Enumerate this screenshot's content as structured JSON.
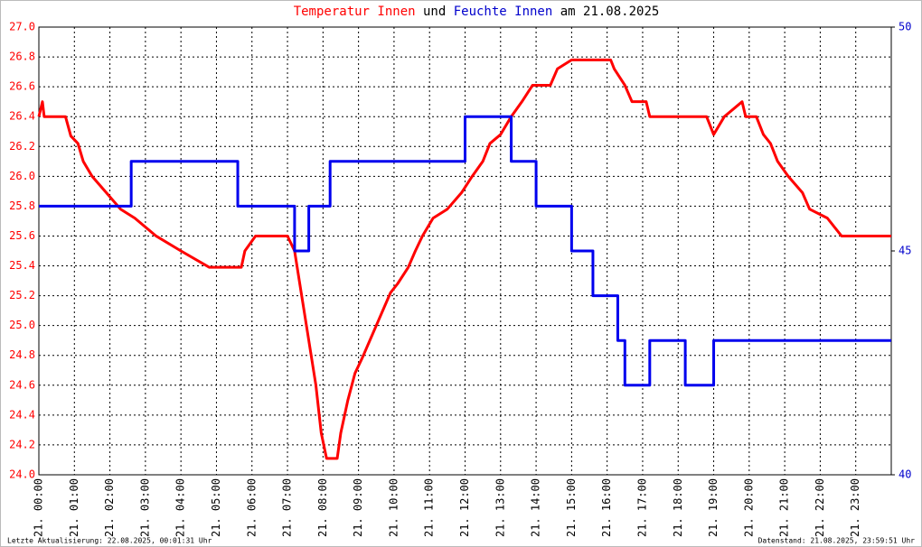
{
  "chart_data": {
    "type": "line",
    "title": [
      {
        "text": "Temperatur Innen",
        "color": "#ff0000"
      },
      {
        "text": "und",
        "color": "#000000"
      },
      {
        "text": "Feuchte Innen",
        "color": "#0000cc"
      },
      {
        "text": "am 21.08.2025",
        "color": "#000000"
      }
    ],
    "footer_left": "Letzte Aktualisierung: 22.08.2025, 00:01:31 Uhr",
    "footer_right": "Datenstand: 21.08.2025, 23:59:51 Uhr",
    "xlim": [
      0,
      24
    ],
    "xticks": [
      {
        "value": 0,
        "label": "21. 00:00"
      },
      {
        "value": 1,
        "label": "21. 01:00"
      },
      {
        "value": 2,
        "label": "21. 02:00"
      },
      {
        "value": 3,
        "label": "21. 03:00"
      },
      {
        "value": 4,
        "label": "21. 04:00"
      },
      {
        "value": 5,
        "label": "21. 05:00"
      },
      {
        "value": 6,
        "label": "21. 06:00"
      },
      {
        "value": 7,
        "label": "21. 07:00"
      },
      {
        "value": 8,
        "label": "21. 08:00"
      },
      {
        "value": 9,
        "label": "21. 09:00"
      },
      {
        "value": 10,
        "label": "21. 10:00"
      },
      {
        "value": 11,
        "label": "21. 11:00"
      },
      {
        "value": 12,
        "label": "21. 12:00"
      },
      {
        "value": 13,
        "label": "21. 13:00"
      },
      {
        "value": 14,
        "label": "21. 14:00"
      },
      {
        "value": 15,
        "label": "21. 15:00"
      },
      {
        "value": 16,
        "label": "21. 16:00"
      },
      {
        "value": 17,
        "label": "21. 17:00"
      },
      {
        "value": 18,
        "label": "21. 18:00"
      },
      {
        "value": 19,
        "label": "21. 19:00"
      },
      {
        "value": 20,
        "label": "21. 20:00"
      },
      {
        "value": 21,
        "label": "21. 21:00"
      },
      {
        "value": 22,
        "label": "21. 22:00"
      },
      {
        "value": 23,
        "label": "21. 23:00"
      }
    ],
    "ylim": [
      24,
      27
    ],
    "yticks": [
      {
        "value": 24,
        "label": "24.0"
      },
      24.2,
      24.4,
      24.6,
      24.8,
      {
        "value": 25,
        "label": "25.0"
      },
      25.2,
      25.4,
      25.6,
      25.8,
      {
        "value": 26,
        "label": "26.0"
      },
      26.2,
      26.4,
      26.6,
      26.8,
      {
        "value": 27,
        "label": "27.0"
      }
    ],
    "y2lim": [
      40,
      50
    ],
    "y2ticks": [
      40,
      45,
      50
    ],
    "grid": true,
    "series": [
      {
        "name": "Temperatur Innen",
        "color": "#ff0000",
        "x": [
          0,
          0.1,
          0.15,
          0.75,
          0.9,
          1.1,
          1.25,
          1.5,
          1.9,
          2.3,
          2.7,
          3.3,
          4.0,
          4.8,
          5.7,
          5.8,
          6.1,
          7.0,
          7.2,
          7.4,
          7.6,
          7.8,
          7.95,
          8.1,
          8.4,
          8.5,
          8.7,
          8.9,
          9.1,
          9.3,
          9.5,
          9.7,
          9.9,
          10.1,
          10.4,
          10.6,
          10.8,
          11.1,
          11.5,
          11.9,
          12.2,
          12.5,
          12.7,
          13.0,
          13.3,
          13.6,
          13.9,
          14.4,
          14.6,
          15.0,
          16.1,
          16.2,
          16.5,
          16.7,
          17.1,
          17.2,
          18.8,
          19.0,
          19.3,
          19.8,
          19.9,
          20.2,
          20.4,
          20.6,
          20.8,
          21.1,
          21.5,
          21.7,
          22.2,
          22.6,
          24.0
        ],
        "values": [
          26.4,
          26.5,
          26.4,
          26.4,
          26.27,
          26.22,
          26.1,
          26.0,
          25.89,
          25.78,
          25.72,
          25.6,
          25.5,
          25.39,
          25.39,
          25.5,
          25.6,
          25.6,
          25.5,
          25.2,
          24.9,
          24.6,
          24.28,
          24.11,
          24.11,
          24.28,
          24.5,
          24.68,
          24.78,
          24.89,
          25.0,
          25.11,
          25.22,
          25.28,
          25.39,
          25.5,
          25.6,
          25.72,
          25.78,
          25.89,
          26.0,
          26.1,
          26.22,
          26.28,
          26.4,
          26.5,
          26.61,
          26.61,
          26.72,
          26.78,
          26.78,
          26.72,
          26.61,
          26.5,
          26.5,
          26.4,
          26.4,
          26.28,
          26.4,
          26.5,
          26.4,
          26.4,
          26.28,
          26.22,
          26.1,
          26.0,
          25.89,
          25.78,
          25.72,
          25.6,
          25.6
        ]
      },
      {
        "name": "Feuchte Innen",
        "color": "#0000ee",
        "axis": "y2",
        "x": [
          0,
          2.6,
          2.6,
          4.4,
          4.4,
          5.6,
          5.6,
          7.2,
          7.2,
          7.6,
          7.6,
          8.2,
          8.2,
          12.0,
          12.0,
          13.3,
          13.3,
          14.0,
          14.0,
          15.0,
          15.0,
          15.6,
          15.6,
          16.3,
          16.3,
          16.5,
          16.5,
          17.2,
          17.2,
          18.2,
          18.2,
          19.0,
          19.0,
          24
        ],
        "values": [
          46,
          46,
          47,
          47,
          47,
          47,
          46,
          46,
          45,
          45,
          46,
          46,
          47,
          47,
          48,
          48,
          47,
          47,
          46,
          46,
          45,
          45,
          44,
          44,
          43,
          43,
          42,
          42,
          43,
          43,
          42,
          42,
          43,
          43
        ]
      }
    ]
  }
}
